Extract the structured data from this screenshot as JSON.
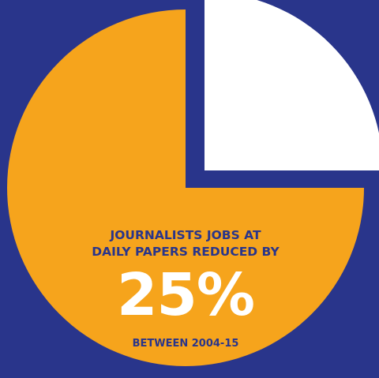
{
  "chart_data": {
    "type": "pie",
    "slices": [
      {
        "value": 75,
        "color": "#f6a41c"
      },
      {
        "value": 25,
        "color": "#ffffff",
        "exploded": true
      }
    ],
    "background": "#29358b",
    "text_color": "#29358b",
    "annotation": {
      "line1": "JOURNALISTS JOBS AT",
      "line2": "DAILY PAPERS REDUCED BY",
      "value": "25%",
      "footer": "BETWEEN 2004-15"
    }
  }
}
